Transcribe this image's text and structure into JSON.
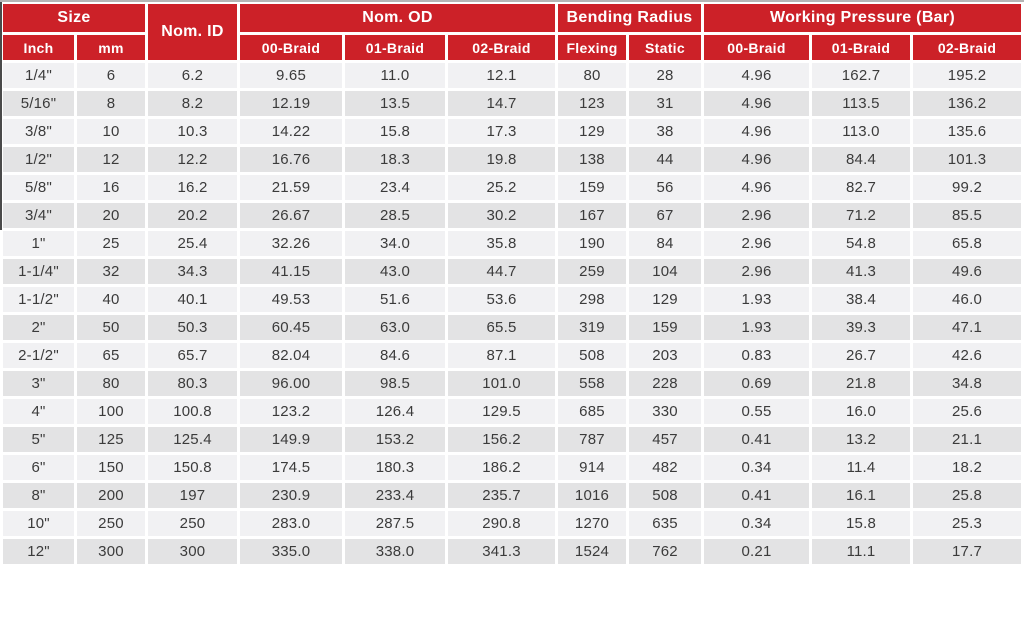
{
  "colors": {
    "header_bg": "#cc2128",
    "header_text": "#ffffff",
    "row_light": "#f1f1f3",
    "row_dark": "#e3e3e4",
    "cell_text": "#3b3b3b",
    "top_border": "#b5b5b5"
  },
  "table": {
    "header_groups": [
      {
        "label": "Size",
        "colspan": 2
      },
      {
        "label": "Nom. ID",
        "rowspan": 2
      },
      {
        "label": "Nom. OD",
        "colspan": 3
      },
      {
        "label": "Bending Radius",
        "colspan": 2
      },
      {
        "label": "Working Pressure (Bar)",
        "colspan": 3
      }
    ],
    "sub_headers": [
      "Inch",
      "mm",
      "00-Braid",
      "01-Braid",
      "02-Braid",
      "Flexing",
      "Static",
      "00-Braid",
      "01-Braid",
      "02-Braid"
    ],
    "rows": [
      [
        "1/4\"",
        "6",
        "6.2",
        "9.65",
        "11.0",
        "12.1",
        "80",
        "28",
        "4.96",
        "162.7",
        "195.2"
      ],
      [
        "5/16\"",
        "8",
        "8.2",
        "12.19",
        "13.5",
        "14.7",
        "123",
        "31",
        "4.96",
        "113.5",
        "136.2"
      ],
      [
        "3/8\"",
        "10",
        "10.3",
        "14.22",
        "15.8",
        "17.3",
        "129",
        "38",
        "4.96",
        "113.0",
        "135.6"
      ],
      [
        "1/2\"",
        "12",
        "12.2",
        "16.76",
        "18.3",
        "19.8",
        "138",
        "44",
        "4.96",
        "84.4",
        "101.3"
      ],
      [
        "5/8\"",
        "16",
        "16.2",
        "21.59",
        "23.4",
        "25.2",
        "159",
        "56",
        "4.96",
        "82.7",
        "99.2"
      ],
      [
        "3/4\"",
        "20",
        "20.2",
        "26.67",
        "28.5",
        "30.2",
        "167",
        "67",
        "2.96",
        "71.2",
        "85.5"
      ],
      [
        "1\"",
        "25",
        "25.4",
        "32.26",
        "34.0",
        "35.8",
        "190",
        "84",
        "2.96",
        "54.8",
        "65.8"
      ],
      [
        "1-1/4\"",
        "32",
        "34.3",
        "41.15",
        "43.0",
        "44.7",
        "259",
        "104",
        "2.96",
        "41.3",
        "49.6"
      ],
      [
        "1-1/2\"",
        "40",
        "40.1",
        "49.53",
        "51.6",
        "53.6",
        "298",
        "129",
        "1.93",
        "38.4",
        "46.0"
      ],
      [
        "2\"",
        "50",
        "50.3",
        "60.45",
        "63.0",
        "65.5",
        "319",
        "159",
        "1.93",
        "39.3",
        "47.1"
      ],
      [
        "2-1/2\"",
        "65",
        "65.7",
        "82.04",
        "84.6",
        "87.1",
        "508",
        "203",
        "0.83",
        "26.7",
        "42.6"
      ],
      [
        "3\"",
        "80",
        "80.3",
        "96.00",
        "98.5",
        "101.0",
        "558",
        "228",
        "0.69",
        "21.8",
        "34.8"
      ],
      [
        "4\"",
        "100",
        "100.8",
        "123.2",
        "126.4",
        "129.5",
        "685",
        "330",
        "0.55",
        "16.0",
        "25.6"
      ],
      [
        "5\"",
        "125",
        "125.4",
        "149.9",
        "153.2",
        "156.2",
        "787",
        "457",
        "0.41",
        "13.2",
        "21.1"
      ],
      [
        "6\"",
        "150",
        "150.8",
        "174.5",
        "180.3",
        "186.2",
        "914",
        "482",
        "0.34",
        "11.4",
        "18.2"
      ],
      [
        "8\"",
        "200",
        "197",
        "230.9",
        "233.4",
        "235.7",
        "1016",
        "508",
        "0.41",
        "16.1",
        "25.8"
      ],
      [
        "10\"",
        "250",
        "250",
        "283.0",
        "287.5",
        "290.8",
        "1270",
        "635",
        "0.34",
        "15.8",
        "25.3"
      ],
      [
        "12\"",
        "300",
        "300",
        "335.0",
        "338.0",
        "341.3",
        "1524",
        "762",
        "0.21",
        "11.1",
        "17.7"
      ]
    ]
  }
}
